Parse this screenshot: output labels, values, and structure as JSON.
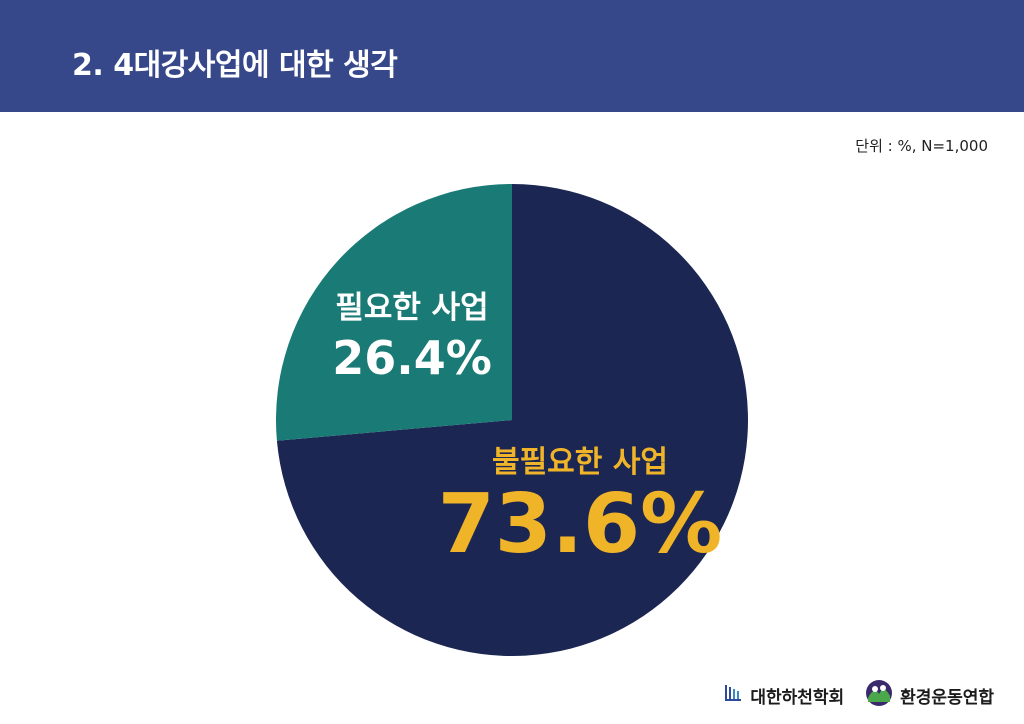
{
  "header": {
    "title": "2. 4대강사업에 대한 생각",
    "background_color": "#36478a"
  },
  "unit_note": "단위 : %, N=1,000",
  "chart_data": {
    "type": "pie",
    "categories": [
      "불필요한 사업",
      "필요한 사업"
    ],
    "values": [
      73.6,
      26.4
    ],
    "value_labels": [
      "73.6%",
      "26.4%"
    ],
    "colors": [
      "#1c2653",
      "#1a7b76"
    ],
    "label_colors": [
      "#f0b428",
      "#ffffff"
    ],
    "start_angle": "12 o'clock",
    "direction": "clockwise"
  },
  "footer": {
    "logos": [
      {
        "text": "대한하천학회",
        "icon": "river-society-logo-icon"
      },
      {
        "text": "환경운동연합",
        "icon": "kfem-logo-icon"
      }
    ]
  }
}
